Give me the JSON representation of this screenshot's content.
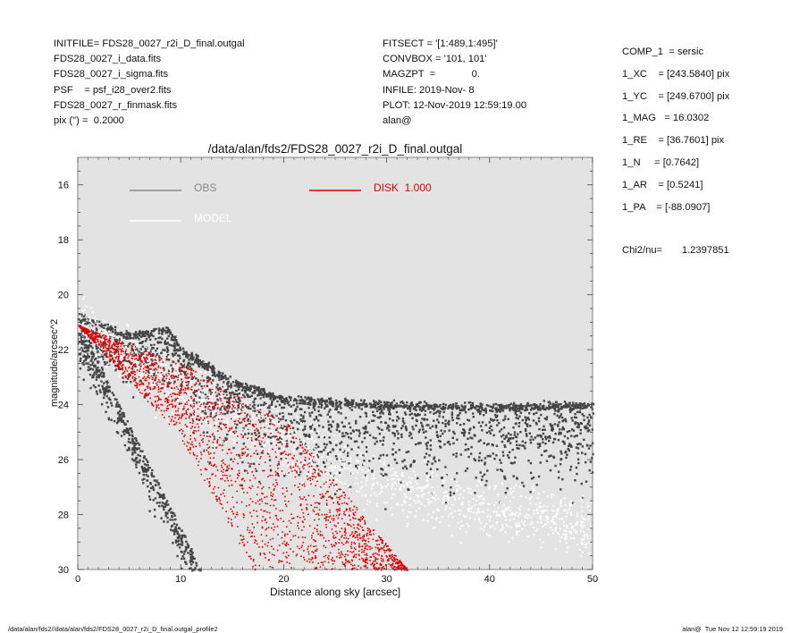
{
  "header_left": [
    "INITFILE= FDS28_0027_r2i_D_final.outgal",
    "FDS28_0027_i_data.fits",
    "FDS28_0027_i_sigma.fits",
    "PSF    = psf_i28_over2.fits",
    "FDS28_0027_r_finmask.fits",
    "pix (\") =  0.2000"
  ],
  "header_mid": [
    "FITSECT = '[1:489,1:495]'",
    "CONVBOX = '101, 101'",
    "MAGZPT  =             0.",
    "INFILE: 2019-Nov- 8",
    "PLOT: 12-Nov-2019 12:59:19.00",
    "alan@"
  ],
  "params": [
    "COMP_1  = sersic",
    "1_XC    = [243.5840] pix",
    "1_YC    = [249.6700] pix",
    "1_MAG   = 16.0302",
    "1_RE    = [36.7601] pix",
    "1_N     = [0.7642]",
    "1_AR    = [0.5241]",
    "1_PA    = [-88.0907]"
  ],
  "chi2": "Chi2/nu=       1.2397851",
  "footer_left": "/data/alan/fds2//data/alan/fds2/FDS28_0027_r2i_D_final.outgal_profile2",
  "footer_right": "alan@  Tue Nov 12 12:59:19 2019",
  "chart_data": {
    "type": "scatter",
    "title": "/data/alan/fds2/FDS28_0027_r2i_D_final.outgal",
    "xlabel": "Distance along sky [arcsec]",
    "ylabel": "magnitude/arcsec^2",
    "xlim": [
      0,
      50
    ],
    "ylim": [
      30,
      15
    ],
    "y_inverted": true,
    "x_ticks": [
      0,
      10,
      20,
      30,
      40,
      50
    ],
    "y_ticks": [
      16,
      18,
      20,
      22,
      24,
      26,
      28,
      30
    ],
    "plot_background": "#e3e3e3",
    "grid": false,
    "legend": [
      {
        "label": "OBS",
        "color": "#8a8a8a",
        "position": "upper-left"
      },
      {
        "label": "MODEL",
        "color": "#ffffff",
        "position": "upper-left"
      },
      {
        "label": "DISK  1.000",
        "color": "#e00000",
        "position": "upper-center"
      }
    ],
    "series": [
      {
        "name": "OBS",
        "color": "#444444",
        "description_points": [
          [
            0,
            20.8
          ],
          [
            5,
            21.5
          ],
          [
            8.5,
            21.2
          ],
          [
            10,
            22.0
          ],
          [
            15,
            23.2
          ],
          [
            20,
            23.8
          ],
          [
            30,
            24.0
          ],
          [
            40,
            24.1
          ],
          [
            50,
            24.0
          ]
        ]
      },
      {
        "name": "MODEL",
        "color": "#ffffff",
        "description_points": [
          [
            0,
            21.1
          ],
          [
            10,
            23.5
          ],
          [
            20,
            25.5
          ],
          [
            30,
            27.0
          ],
          [
            40,
            27.8
          ],
          [
            50,
            28.5
          ]
        ]
      },
      {
        "name": "DISK  1.000",
        "color": "#e00000",
        "band_inner": [
          [
            0,
            21.1
          ],
          [
            10,
            25.2
          ],
          [
            17,
            30.0
          ]
        ],
        "band_outer": [
          [
            0,
            21.1
          ],
          [
            10,
            22.5
          ],
          [
            20,
            24.5
          ],
          [
            32,
            30.0
          ]
        ]
      }
    ]
  }
}
